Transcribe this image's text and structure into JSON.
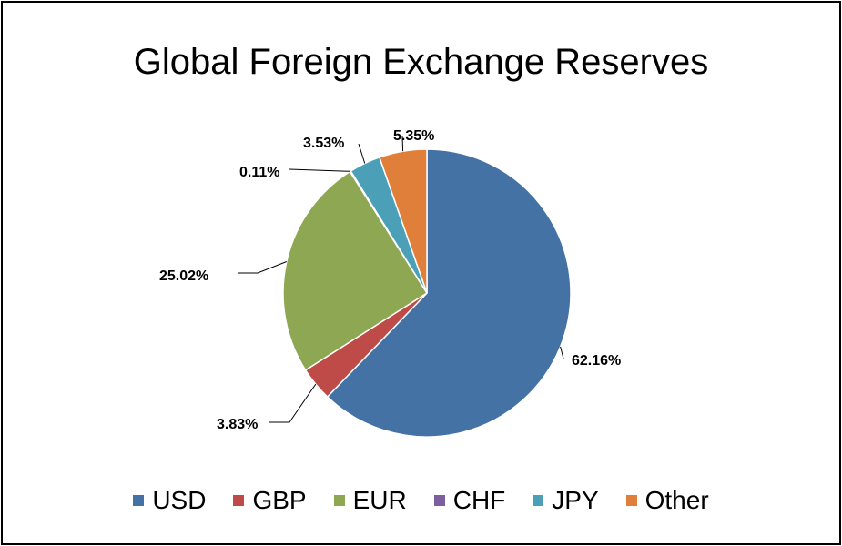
{
  "chart_data": {
    "type": "pie",
    "title": "Global Foreign Exchange Reserves",
    "slices": [
      {
        "name": "USD",
        "value": 62.16,
        "label": "62.16%",
        "color": "#4472A4"
      },
      {
        "name": "GBP",
        "value": 3.83,
        "label": "3.83%",
        "color": "#BE4B48"
      },
      {
        "name": "EUR",
        "value": 25.02,
        "label": "25.02%",
        "color": "#8DA752"
      },
      {
        "name": "CHF",
        "value": 0.11,
        "label": "0.11%",
        "color": "#7D5FA0"
      },
      {
        "name": "JPY",
        "value": 3.53,
        "label": "3.53%",
        "color": "#4BA0B8"
      },
      {
        "name": "Other",
        "value": 5.35,
        "label": "5.35%",
        "color": "#E07F3A"
      }
    ],
    "legend_position": "bottom"
  }
}
